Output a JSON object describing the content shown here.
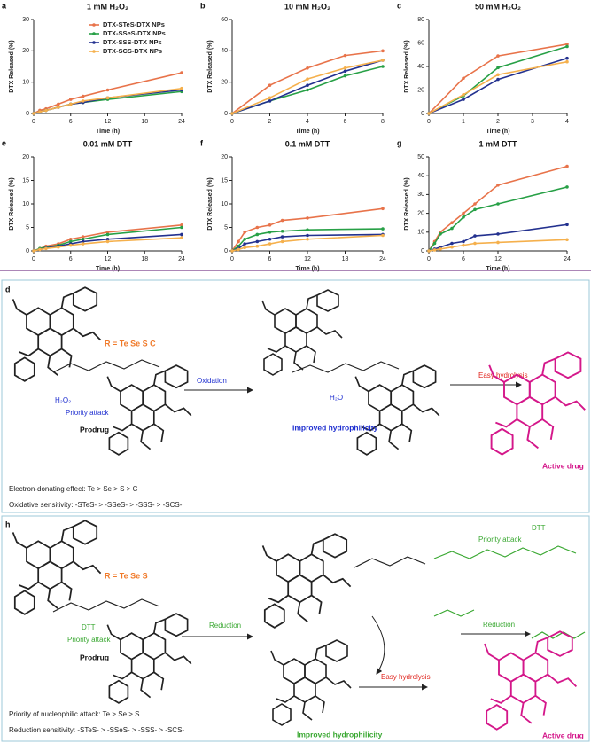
{
  "chart_data": [
    {
      "type": "line",
      "panel": "a",
      "title": "1 mM H₂O₂",
      "xlabel": "Time (h)",
      "ylabel": "DTX Released (%)",
      "x": [
        0,
        1,
        2,
        4,
        6,
        8,
        12,
        24
      ],
      "xlim": [
        0,
        24
      ],
      "xticks": [
        0,
        6,
        12,
        18,
        24
      ],
      "ylim": [
        0,
        30
      ],
      "yticks": [
        0,
        10,
        20,
        30
      ],
      "legend": "upper center",
      "series": [
        {
          "name": "DTX-STeS-DTX  NPs",
          "color": "#e8734a",
          "values": [
            0,
            1,
            1.5,
            3,
            4.5,
            5.5,
            7.5,
            13
          ]
        },
        {
          "name": "DTX-SSeS-DTX  NPs",
          "color": "#27a046",
          "values": [
            0,
            0.5,
            1,
            2,
            3,
            3.5,
            4.5,
            7
          ]
        },
        {
          "name": "DTX-SSS-DTX  NPs",
          "color": "#23318f",
          "values": [
            0,
            0.5,
            1,
            2,
            3,
            3.5,
            5,
            7.5
          ]
        },
        {
          "name": "DTX-SCS-DTX NPs",
          "color": "#f5b04c",
          "values": [
            0,
            0.5,
            1,
            2,
            3,
            4,
            5,
            8
          ]
        }
      ]
    },
    {
      "type": "line",
      "panel": "b",
      "title": "10 mM H₂O₂",
      "xlabel": "Time (h)",
      "ylabel": "DTX Released (%)",
      "x": [
        0,
        2,
        4,
        6,
        8
      ],
      "xlim": [
        0,
        8
      ],
      "xticks": [
        0,
        2,
        4,
        6,
        8
      ],
      "ylim": [
        0,
        60
      ],
      "yticks": [
        0,
        20,
        40,
        60
      ],
      "series": [
        {
          "color": "#e8734a",
          "values": [
            0,
            18,
            29,
            37,
            40
          ]
        },
        {
          "color": "#27a046",
          "values": [
            0,
            8,
            15,
            24,
            30
          ]
        },
        {
          "color": "#23318f",
          "values": [
            0,
            8,
            18,
            27,
            34
          ]
        },
        {
          "color": "#f5b04c",
          "values": [
            0,
            10,
            22,
            29,
            34
          ]
        }
      ]
    },
    {
      "type": "line",
      "panel": "c",
      "title": "50 mM H₂O₂",
      "xlabel": "Time (h)",
      "ylabel": "DTX Released (%)",
      "x": [
        0,
        1,
        2,
        4
      ],
      "xlim": [
        0,
        4
      ],
      "xticks": [
        0,
        1,
        2,
        3,
        4
      ],
      "ylim": [
        0,
        80
      ],
      "yticks": [
        0,
        20,
        40,
        60,
        80
      ],
      "series": [
        {
          "color": "#e8734a",
          "values": [
            0,
            30,
            49,
            59
          ]
        },
        {
          "color": "#27a046",
          "values": [
            0,
            15,
            39,
            57
          ]
        },
        {
          "color": "#23318f",
          "values": [
            0,
            12,
            29,
            47
          ]
        },
        {
          "color": "#f5b04c",
          "values": [
            0,
            16,
            33,
            44
          ]
        }
      ]
    },
    {
      "type": "line",
      "panel": "e",
      "title": "0.01 mM DTT",
      "xlabel": "Time (h)",
      "ylabel": "DTX Released (%)",
      "x": [
        0,
        1,
        2,
        4,
        6,
        8,
        12,
        24
      ],
      "xlim": [
        0,
        24
      ],
      "xticks": [
        0,
        6,
        12,
        18,
        24
      ],
      "ylim": [
        0,
        20
      ],
      "yticks": [
        0,
        5,
        10,
        15,
        20
      ],
      "series": [
        {
          "color": "#e8734a",
          "values": [
            0,
            0.5,
            1,
            1.5,
            2.5,
            3,
            4,
            5.5
          ]
        },
        {
          "color": "#27a046",
          "values": [
            0,
            0.5,
            0.8,
            1.2,
            2,
            2.5,
            3.5,
            5
          ]
        },
        {
          "color": "#23318f",
          "values": [
            0,
            0.3,
            0.6,
            1,
            1.5,
            2,
            2.5,
            3.5
          ]
        },
        {
          "color": "#f5b04c",
          "values": [
            0,
            0.3,
            0.5,
            0.8,
            1.2,
            1.5,
            2,
            2.8
          ]
        }
      ]
    },
    {
      "type": "line",
      "panel": "f",
      "title": "0.1 mM DTT",
      "xlabel": "Time (h)",
      "ylabel": "DTX Released (%)",
      "x": [
        0,
        1,
        2,
        4,
        6,
        8,
        12,
        24
      ],
      "xlim": [
        0,
        24
      ],
      "xticks": [
        0,
        6,
        12,
        18,
        24
      ],
      "ylim": [
        0,
        20
      ],
      "yticks": [
        0,
        5,
        10,
        15,
        20
      ],
      "series": [
        {
          "color": "#e8734a",
          "values": [
            0,
            2,
            4,
            5,
            5.5,
            6.5,
            7,
            9
          ]
        },
        {
          "color": "#27a046",
          "values": [
            0,
            1,
            2.5,
            3.5,
            4,
            4.2,
            4.5,
            4.7
          ]
        },
        {
          "color": "#23318f",
          "values": [
            0,
            0.5,
            1.5,
            2,
            2.5,
            3,
            3.3,
            3.5
          ]
        },
        {
          "color": "#f5b04c",
          "values": [
            0,
            0.3,
            0.7,
            1,
            1.5,
            2,
            2.5,
            3.3
          ]
        }
      ]
    },
    {
      "type": "line",
      "panel": "g",
      "title": "1 mM DTT",
      "xlabel": "Time (h)",
      "ylabel": "DTX Released (%)",
      "x": [
        0,
        1,
        2,
        4,
        6,
        8,
        12,
        24
      ],
      "xlim": [
        0,
        24
      ],
      "xticks": [
        0,
        6,
        12,
        24
      ],
      "ylim": [
        0,
        50
      ],
      "yticks": [
        0,
        10,
        20,
        30,
        40,
        50
      ],
      "series": [
        {
          "color": "#e8734a",
          "values": [
            0,
            5,
            10,
            15,
            20,
            25,
            35,
            45
          ]
        },
        {
          "color": "#27a046",
          "values": [
            0,
            4,
            9,
            12,
            18,
            22,
            25,
            34
          ]
        },
        {
          "color": "#23318f",
          "values": [
            0,
            1,
            2,
            4,
            5,
            8,
            9,
            14
          ]
        },
        {
          "color": "#f5b04c",
          "values": [
            0,
            0.5,
            1,
            2,
            3,
            4,
            4.5,
            6
          ]
        }
      ]
    }
  ],
  "panel_d": {
    "label": "d",
    "r_group": "R = Te Se S C",
    "oxidant": "H₂O₂",
    "attack": "Priority attack",
    "prodrug": "Prodrug",
    "step": "Oxidation",
    "water": "H₂O",
    "intermediate": "Improved hydrophilicity",
    "hydrolysis": "Easy hydrolysis",
    "product": "Active drug",
    "note1": "Electron-donating  effect: Te > Se > S > C",
    "note2": "Oxidative sensitivity: -STeS- > -SSeS- > -SSS- > -SCS-"
  },
  "panel_h": {
    "label": "h",
    "r_group": "R = Te Se S",
    "reductant": "DTT",
    "attack": "Priority attack",
    "prodrug": "Prodrug",
    "step": "Reduction",
    "attack2": "Priority attack",
    "reductant2": "DTT",
    "step2": "Reduction",
    "hydrolysis": "Easy hydrolysis",
    "intermediate": "Improved hydrophilicity",
    "product": "Active drug",
    "note1": "Priority of nucleophilic attack: Te > Se > S",
    "note2": "Reduction sensitivity: -STeS- > -SSeS- > -SSS- > -SCS-"
  }
}
